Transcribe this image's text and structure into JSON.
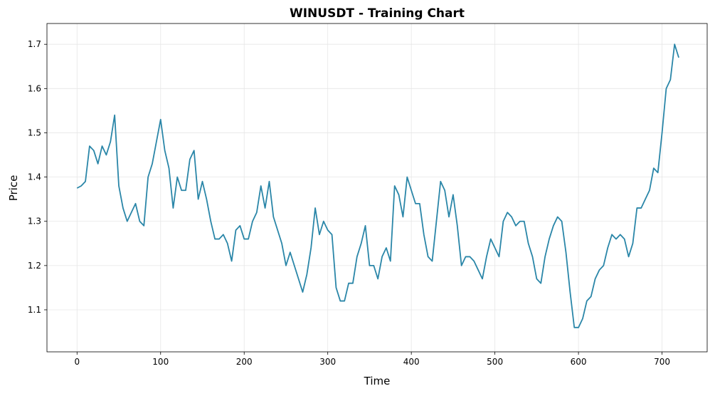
{
  "chart_data": {
    "type": "line",
    "title": "WINUSDT - Training Chart",
    "x_label": "Time",
    "y_label": "Price",
    "color": "#2a86a8",
    "grid": true,
    "xlim": [
      -36,
      754
    ],
    "ylim": [
      1.005,
      1.747
    ],
    "xticks": [
      0,
      100,
      200,
      300,
      400,
      500,
      600,
      700
    ],
    "yticks": [
      1.1,
      1.2,
      1.3,
      1.4,
      1.5,
      1.6,
      1.7
    ],
    "x": [
      0,
      5,
      10,
      15,
      20,
      25,
      30,
      35,
      40,
      45,
      50,
      55,
      60,
      65,
      70,
      75,
      80,
      85,
      90,
      95,
      100,
      105,
      110,
      115,
      120,
      125,
      130,
      135,
      140,
      145,
      150,
      155,
      160,
      165,
      170,
      175,
      180,
      185,
      190,
      195,
      200,
      205,
      210,
      215,
      220,
      225,
      230,
      235,
      240,
      245,
      250,
      255,
      260,
      265,
      270,
      275,
      280,
      285,
      290,
      295,
      300,
      305,
      310,
      315,
      320,
      325,
      330,
      335,
      340,
      345,
      350,
      355,
      360,
      365,
      370,
      375,
      380,
      385,
      390,
      395,
      400,
      405,
      410,
      415,
      420,
      425,
      430,
      435,
      440,
      445,
      450,
      455,
      460,
      465,
      470,
      475,
      480,
      485,
      490,
      495,
      500,
      505,
      510,
      515,
      520,
      525,
      530,
      535,
      540,
      545,
      550,
      555,
      560,
      565,
      570,
      575,
      580,
      585,
      590,
      595,
      600,
      605,
      610,
      615,
      620,
      625,
      630,
      635,
      640,
      645,
      650,
      655,
      660,
      665,
      670,
      675,
      680,
      685,
      690,
      695,
      700,
      705,
      710,
      715,
      720
    ],
    "values": [
      1.375,
      1.38,
      1.39,
      1.47,
      1.46,
      1.43,
      1.47,
      1.45,
      1.48,
      1.54,
      1.38,
      1.33,
      1.3,
      1.32,
      1.34,
      1.3,
      1.29,
      1.4,
      1.43,
      1.48,
      1.53,
      1.46,
      1.42,
      1.33,
      1.4,
      1.37,
      1.37,
      1.44,
      1.46,
      1.35,
      1.39,
      1.35,
      1.3,
      1.26,
      1.26,
      1.27,
      1.25,
      1.21,
      1.28,
      1.29,
      1.26,
      1.26,
      1.3,
      1.32,
      1.38,
      1.33,
      1.39,
      1.31,
      1.28,
      1.25,
      1.2,
      1.23,
      1.2,
      1.17,
      1.14,
      1.18,
      1.24,
      1.33,
      1.27,
      1.3,
      1.28,
      1.27,
      1.15,
      1.12,
      1.12,
      1.16,
      1.16,
      1.22,
      1.25,
      1.29,
      1.2,
      1.2,
      1.17,
      1.22,
      1.24,
      1.21,
      1.38,
      1.36,
      1.31,
      1.4,
      1.37,
      1.34,
      1.34,
      1.27,
      1.22,
      1.21,
      1.3,
      1.39,
      1.37,
      1.31,
      1.36,
      1.29,
      1.2,
      1.22,
      1.22,
      1.21,
      1.19,
      1.17,
      1.22,
      1.26,
      1.24,
      1.22,
      1.3,
      1.32,
      1.31,
      1.29,
      1.3,
      1.3,
      1.25,
      1.22,
      1.17,
      1.16,
      1.22,
      1.26,
      1.29,
      1.31,
      1.3,
      1.23,
      1.14,
      1.06,
      1.06,
      1.08,
      1.12,
      1.13,
      1.17,
      1.19,
      1.2,
      1.24,
      1.27,
      1.26,
      1.27,
      1.26,
      1.22,
      1.25,
      1.33,
      1.33,
      1.35,
      1.37,
      1.42,
      1.41,
      1.5,
      1.6,
      1.62,
      1.7,
      1.67
    ]
  }
}
